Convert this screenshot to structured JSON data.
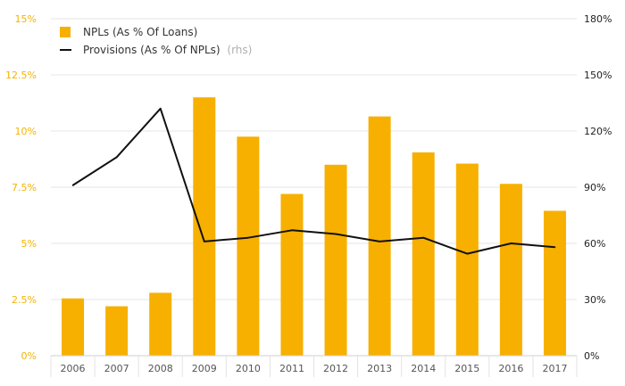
{
  "colors": {
    "bar": "#f7b000",
    "line": "#111111",
    "grid": "#e6e6e6",
    "left_axis_text": "#f5b301",
    "right_axis_text": "#222222"
  },
  "chart_data": {
    "type": "bar",
    "title": "",
    "xlabel": "",
    "ylabel": "",
    "categories": [
      "2006",
      "2007",
      "2008",
      "2009",
      "2010",
      "2011",
      "2012",
      "2013",
      "2014",
      "2015",
      "2016",
      "2017"
    ],
    "series": [
      {
        "name": "NPLs (As % Of Loans)",
        "type": "bar",
        "axis": "left",
        "values": [
          2.55,
          2.2,
          2.8,
          11.5,
          9.75,
          7.2,
          8.5,
          10.65,
          9.05,
          8.55,
          7.65,
          6.45
        ]
      },
      {
        "name": "Provisions (As % Of NPLs)",
        "suffix": "(rhs)",
        "type": "line",
        "axis": "right",
        "values": [
          91,
          106,
          132,
          61,
          63,
          67,
          65,
          61,
          63,
          54.5,
          60,
          58
        ]
      }
    ],
    "ylim": [
      0,
      15
    ],
    "y2lim": [
      0,
      180
    ],
    "left_ticks": [
      "0%",
      "2.5%",
      "5%",
      "7.5%",
      "10%",
      "12.5%",
      "15%"
    ],
    "left_tick_values": [
      0,
      2.5,
      5,
      7.5,
      10,
      12.5,
      15
    ],
    "right_ticks": [
      "0%",
      "30%",
      "60%",
      "90%",
      "120%",
      "150%",
      "180%"
    ],
    "right_tick_values": [
      0,
      30,
      60,
      90,
      120,
      150,
      180
    ],
    "grid": true,
    "legend_position": "top-left"
  }
}
